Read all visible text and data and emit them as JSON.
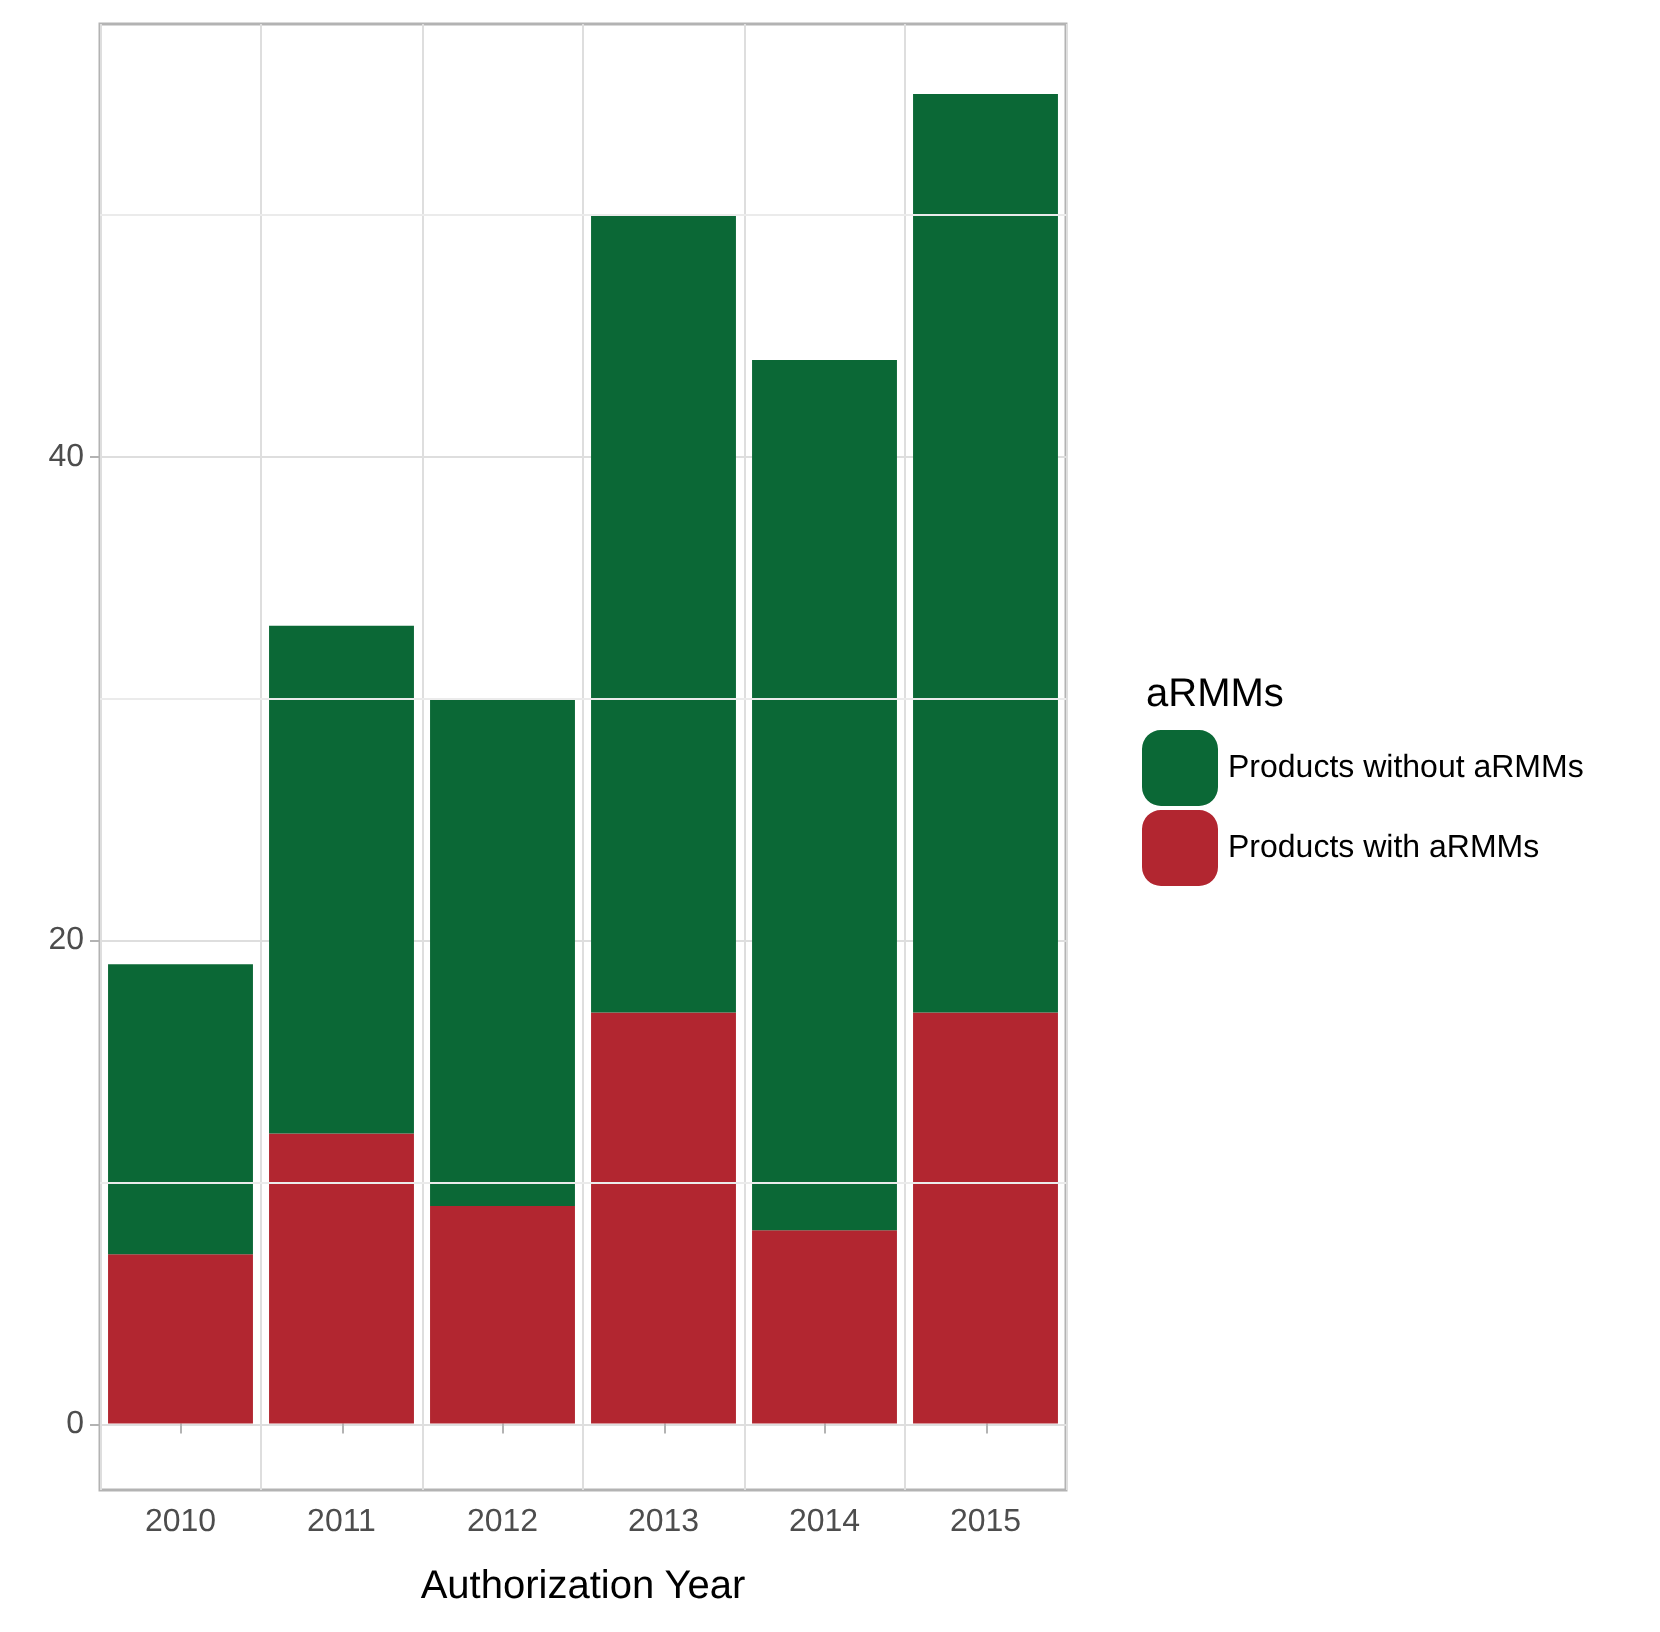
{
  "chart_data": {
    "type": "bar",
    "stacked": true,
    "xlabel": "Authorization Year",
    "legend_title": "aRMMs",
    "legend": "right",
    "grid": true,
    "categories": [
      "2010",
      "2011",
      "2012",
      "2013",
      "2014",
      "2015"
    ],
    "series": [
      {
        "name": "Products with aRMMs",
        "color": "#b22630",
        "values": [
          7,
          12,
          9,
          17,
          8,
          17
        ]
      },
      {
        "name": "Products without aRMMs",
        "color": "#0b6836",
        "values": [
          12,
          21,
          21,
          33,
          36,
          38
        ]
      }
    ],
    "ylim": [
      -2.75,
      57.9
    ],
    "yticks": [
      0,
      {
        "value": 10,
        "label": null
      },
      20,
      {
        "value": 30,
        "label": null
      },
      40,
      {
        "value": 50,
        "label": null
      }
    ]
  }
}
